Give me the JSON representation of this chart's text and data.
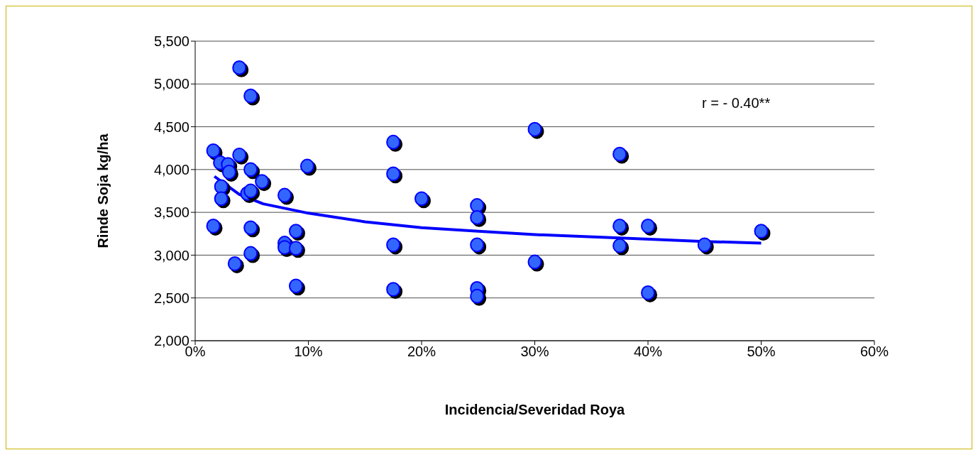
{
  "chart_data": {
    "type": "scatter",
    "xlabel": "Incidencia/Severidad Roya",
    "ylabel": "Rinde Soja kg/ha",
    "annotations": [
      "r = - 0.40**"
    ],
    "xlim": [
      0,
      60
    ],
    "xticks": [
      {
        "value": 0,
        "label": "0%"
      },
      {
        "value": 10,
        "label": "10%"
      },
      {
        "value": 20,
        "label": "20%"
      },
      {
        "value": 30,
        "label": "30%"
      },
      {
        "value": 40,
        "label": "40%"
      },
      {
        "value": 50,
        "label": "50%"
      },
      {
        "value": 60,
        "label": "60%"
      }
    ],
    "ylim": [
      2000,
      5500
    ],
    "yticks": [
      {
        "value": 2000,
        "label": "2,000"
      },
      {
        "value": 2500,
        "label": "2,500"
      },
      {
        "value": 3000,
        "label": "3,000"
      },
      {
        "value": 3500,
        "label": "3,500"
      },
      {
        "value": 4000,
        "label": "4,000"
      },
      {
        "value": 4500,
        "label": "4,500"
      },
      {
        "value": 5000,
        "label": "5,000"
      },
      {
        "value": 5500,
        "label": "5,500"
      }
    ],
    "grid": "y",
    "marker": "circle",
    "series": [
      {
        "color": "#3366ff",
        "x": [
          3.9,
          4.9,
          1.6,
          2.2,
          2.9,
          3.0,
          3.9,
          4.9,
          5.9,
          2.3,
          2.3,
          4.6,
          4.9,
          7.9,
          9.9,
          1.6,
          4.9,
          3.5,
          4.9,
          7.9,
          7.9,
          8.9,
          8.9,
          8.9,
          17.5,
          17.5,
          20.0,
          24.9,
          24.9,
          17.5,
          24.9,
          30.0,
          30.0,
          17.5,
          24.9,
          24.9,
          37.5,
          37.5,
          37.5,
          40.0,
          40.0,
          45.0,
          50.0
        ],
        "values": [
          5190,
          4860,
          4220,
          4080,
          4060,
          3970,
          4170,
          4000,
          3860,
          3800,
          3660,
          3720,
          3750,
          3700,
          4040,
          3340,
          3320,
          2900,
          3020,
          3140,
          3090,
          3280,
          3080,
          2640,
          4320,
          3950,
          3660,
          3580,
          3440,
          3120,
          3120,
          4470,
          2920,
          2600,
          2610,
          2520,
          4180,
          3340,
          3110,
          3340,
          2560,
          3120,
          3280
        ]
      },
      {
        "type": "line",
        "color": "#0000ff",
        "marker": "none",
        "line_style": "solid",
        "x": [
          1.7,
          3.9,
          6.0,
          10.0,
          15.0,
          20.0,
          25.0,
          30.0,
          37.5,
          45.0,
          50.0
        ],
        "values": [
          3920,
          3710,
          3600,
          3490,
          3390,
          3320,
          3280,
          3240,
          3200,
          3160,
          3140
        ]
      }
    ]
  }
}
